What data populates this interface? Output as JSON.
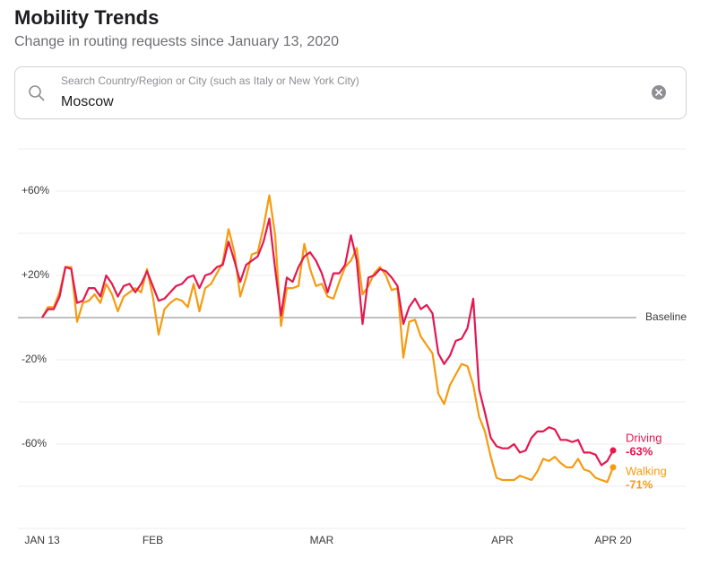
{
  "header": {
    "title": "Mobility Trends",
    "subtitle": "Change in routing requests since January 13, 2020"
  },
  "search": {
    "placeholder": "Search Country/Region or City (such as Italy or New York City)",
    "value": "Moscow"
  },
  "chart_data": {
    "type": "line",
    "categories": [
      "JAN 13",
      null,
      null,
      null,
      null,
      null,
      null,
      null,
      null,
      null,
      null,
      null,
      null,
      null,
      null,
      null,
      null,
      null,
      null,
      "FEB",
      null,
      null,
      null,
      null,
      null,
      null,
      null,
      null,
      null,
      null,
      null,
      null,
      null,
      null,
      null,
      null,
      null,
      null,
      null,
      null,
      null,
      null,
      null,
      null,
      null,
      null,
      null,
      null,
      "MAR",
      null,
      null,
      null,
      null,
      null,
      null,
      null,
      null,
      null,
      null,
      null,
      null,
      null,
      null,
      null,
      null,
      null,
      null,
      null,
      null,
      null,
      null,
      null,
      null,
      null,
      null,
      null,
      null,
      null,
      null,
      "APR",
      null,
      null,
      null,
      null,
      null,
      null,
      null,
      null,
      null,
      null,
      null,
      null,
      null,
      null,
      null,
      null,
      null,
      null,
      "APR 20"
    ],
    "series": [
      {
        "name": "Driving",
        "color": "#e5174f",
        "values": [
          0,
          4,
          4,
          10,
          24,
          23,
          7,
          8,
          14,
          14,
          10,
          20,
          16,
          10,
          15,
          16,
          12,
          16,
          22,
          15,
          8,
          9,
          12,
          15,
          16,
          19,
          20,
          14,
          20,
          21,
          24,
          25,
          36,
          27,
          17,
          25,
          27,
          29,
          36,
          47,
          23,
          1,
          19,
          17,
          24,
          29,
          31,
          27,
          21,
          12,
          21,
          21,
          25,
          39,
          27,
          -3,
          19,
          20,
          23,
          22,
          19,
          15,
          -3,
          5,
          9,
          4,
          6,
          2,
          -17,
          -22,
          -18,
          -11,
          -10,
          -5,
          9,
          -34,
          -45,
          -57,
          -61,
          -62,
          -62,
          -60,
          -64,
          -63,
          -57,
          -54,
          -54,
          -52,
          -53,
          -58,
          -58,
          -59,
          -58,
          -64,
          -64,
          -65,
          -70,
          -68,
          -63
        ],
        "value_labels": [
          null,
          null,
          null,
          null,
          null,
          null,
          null,
          null,
          null,
          null,
          null,
          null,
          null,
          null,
          null,
          null,
          null,
          null,
          null,
          null,
          null,
          null,
          null,
          null,
          null,
          null,
          null,
          null,
          null,
          null,
          null,
          null,
          null,
          null,
          null,
          null,
          null,
          null,
          null,
          null,
          null,
          null,
          null,
          null,
          null,
          null,
          null,
          null,
          null,
          null,
          null,
          null,
          null,
          null,
          null,
          null,
          null,
          null,
          null,
          null,
          null,
          null,
          null,
          null,
          null,
          null,
          null,
          null,
          null,
          null,
          null,
          null,
          null,
          null,
          null,
          null,
          null,
          null,
          null,
          null,
          null,
          null,
          null,
          null,
          null,
          null,
          null,
          null,
          null,
          null,
          null,
          null,
          null,
          null,
          null,
          null,
          null,
          null,
          "-63%"
        ]
      },
      {
        "name": "Walking",
        "color": "#f59b10",
        "values": [
          0,
          5,
          5,
          12,
          24,
          24,
          -2,
          7,
          8,
          11,
          7,
          16,
          11,
          3,
          10,
          12,
          14,
          12,
          23,
          10,
          -8,
          4,
          7,
          9,
          8,
          5,
          16,
          3,
          14,
          16,
          21,
          26,
          42,
          31,
          10,
          19,
          30,
          31,
          43,
          58,
          39,
          -4,
          14,
          14,
          15,
          35,
          23,
          15,
          16,
          10,
          9,
          17,
          24,
          27,
          33,
          11,
          15,
          21,
          24,
          20,
          13,
          14,
          -19,
          -2,
          -1,
          -9,
          -13,
          -17,
          -36,
          -41,
          -32,
          -27,
          -22,
          -23,
          -32,
          -47,
          -54,
          -66,
          -76,
          -77,
          -77,
          -77,
          -75,
          -76,
          -77,
          -73,
          -67,
          -68,
          -66,
          -69,
          -71,
          -71,
          -67,
          -72,
          -73,
          -76,
          -77,
          -78,
          -71
        ],
        "value_labels": [
          null,
          null,
          null,
          null,
          null,
          null,
          null,
          null,
          null,
          null,
          null,
          null,
          null,
          null,
          null,
          null,
          null,
          null,
          null,
          null,
          null,
          null,
          null,
          null,
          null,
          null,
          null,
          null,
          null,
          null,
          null,
          null,
          null,
          null,
          null,
          null,
          null,
          null,
          null,
          null,
          null,
          null,
          null,
          null,
          null,
          null,
          null,
          null,
          null,
          null,
          null,
          null,
          null,
          null,
          null,
          null,
          null,
          null,
          null,
          null,
          null,
          null,
          null,
          null,
          null,
          null,
          null,
          null,
          null,
          null,
          null,
          null,
          null,
          null,
          null,
          null,
          null,
          null,
          null,
          null,
          null,
          null,
          null,
          null,
          null,
          null,
          null,
          null,
          null,
          null,
          null,
          null,
          null,
          null,
          null,
          null,
          null,
          null,
          "-71%"
        ]
      }
    ],
    "ylim": [
      -100,
      80
    ],
    "yticks": [
      {
        "value": 60,
        "label": "+60%"
      },
      {
        "value": 20,
        "label": "+20%"
      },
      {
        "value": -20,
        "label": "-20%"
      },
      {
        "value": -60,
        "label": "-60%"
      }
    ],
    "grid_lines": [
      80,
      60,
      40,
      20,
      -20,
      -40,
      -60,
      -80,
      -100
    ],
    "baseline": 0,
    "baseline_label": "Baseline",
    "grid": true
  }
}
